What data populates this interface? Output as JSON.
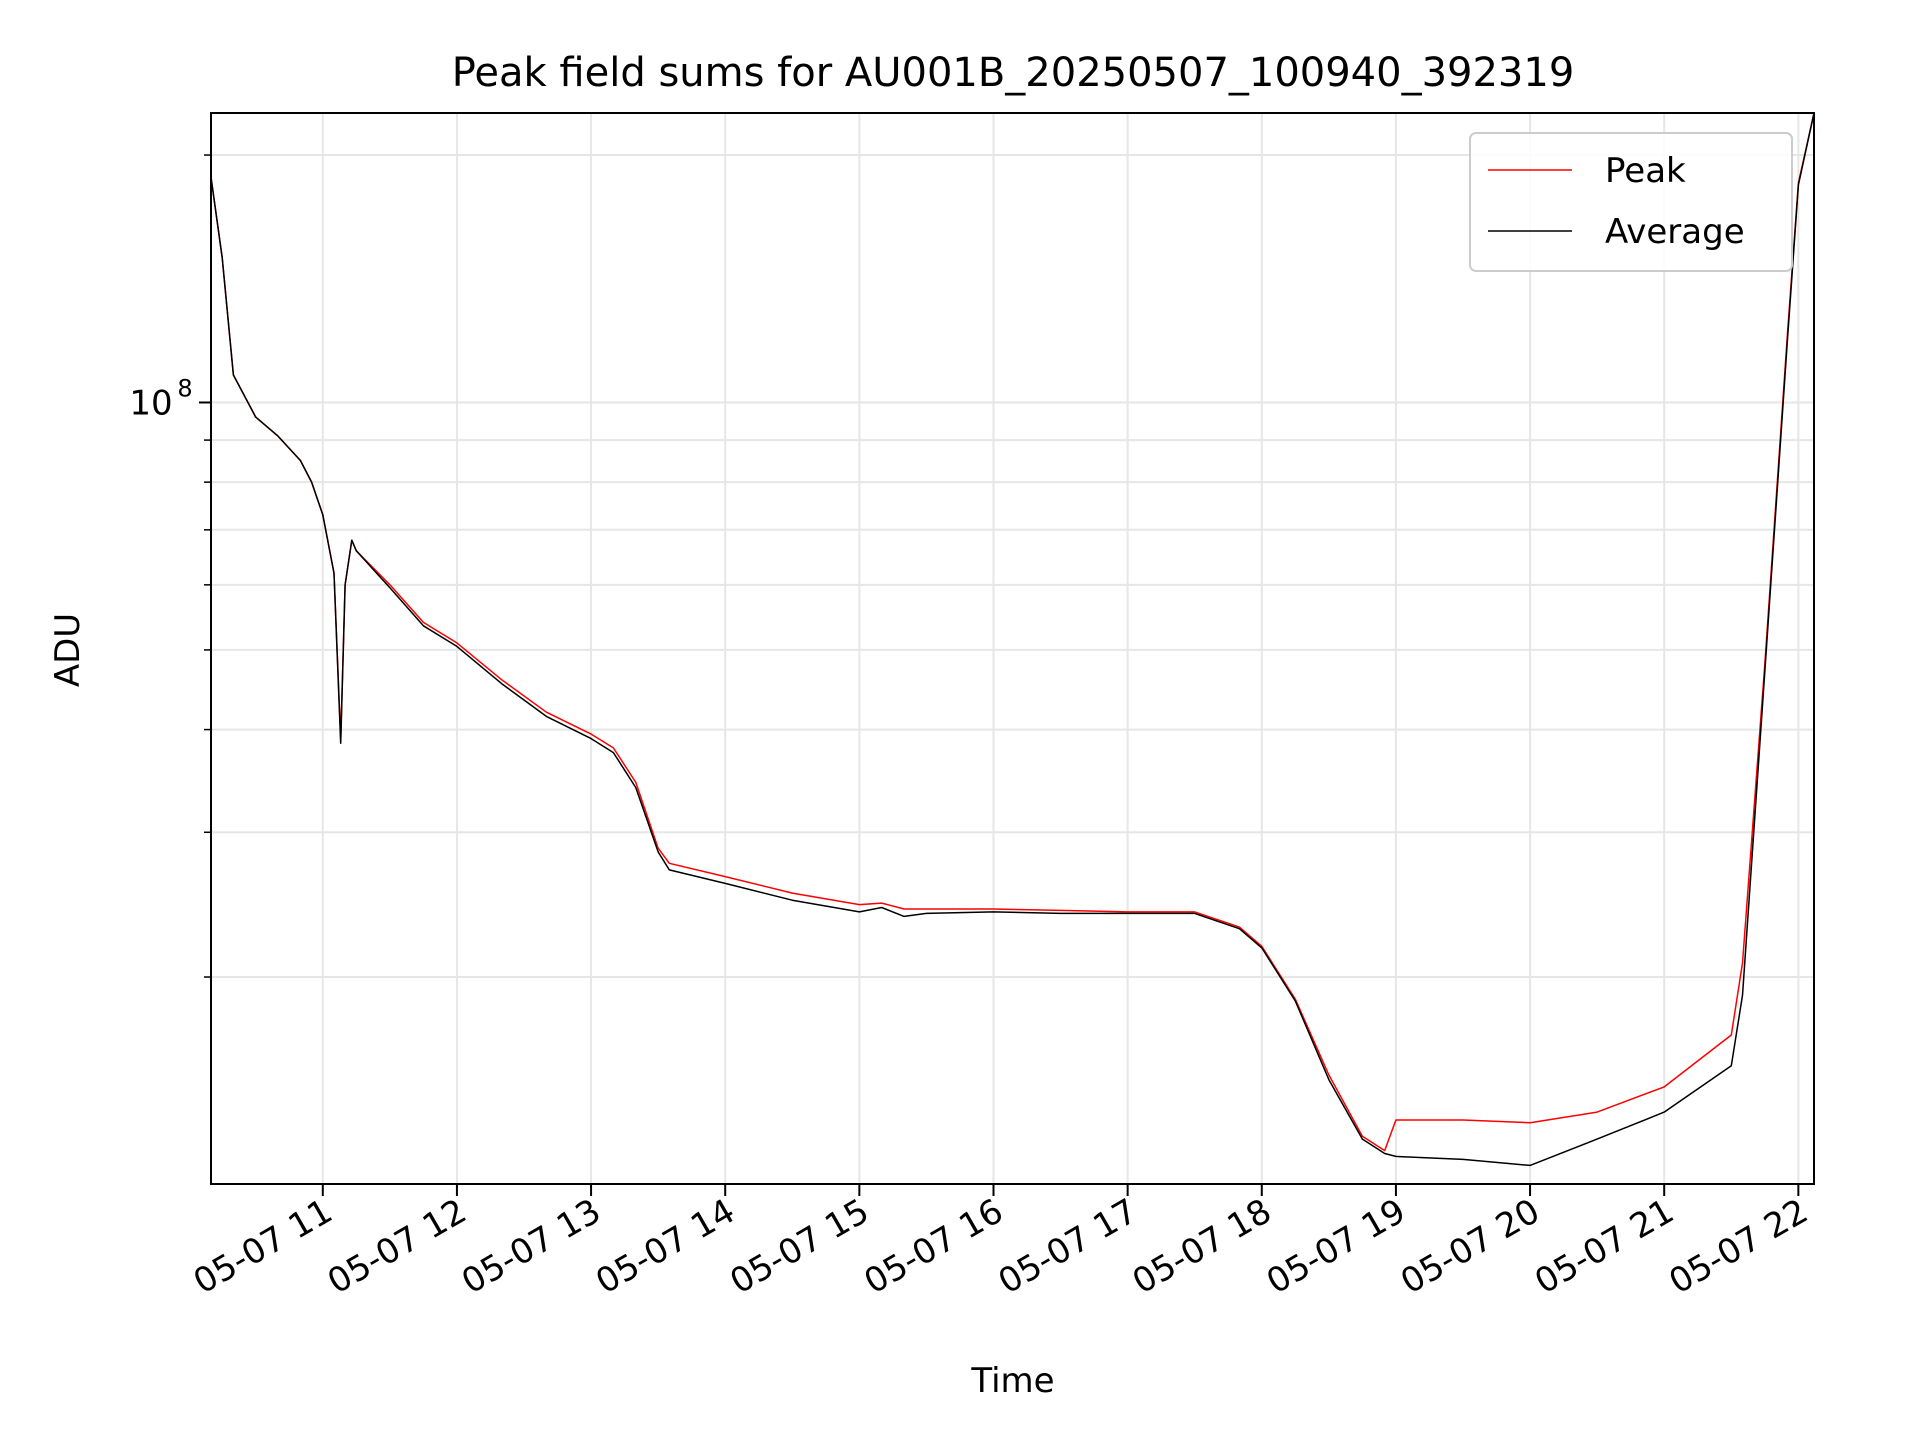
{
  "chart_data": {
    "type": "line",
    "title": "Peak field sums for AU001B_20250507_100940_392319",
    "xlabel": "Time",
    "ylabel": "ADU",
    "yscale": "log",
    "ylim": [
      11200000,
      225000000
    ],
    "xlim": [
      "2025-05-07 10:10",
      "2025-05-07 22:07"
    ],
    "x_tick_labels": [
      "05-07 11",
      "05-07 12",
      "05-07 13",
      "05-07 14",
      "05-07 15",
      "05-07 16",
      "05-07 17",
      "05-07 18",
      "05-07 19",
      "05-07 20",
      "05-07 21",
      "05-07 22"
    ],
    "x_ticks": [
      "2025-05-07 11:00",
      "2025-05-07 12:00",
      "2025-05-07 13:00",
      "2025-05-07 14:00",
      "2025-05-07 15:00",
      "2025-05-07 16:00",
      "2025-05-07 17:00",
      "2025-05-07 18:00",
      "2025-05-07 19:00",
      "2025-05-07 20:00",
      "2025-05-07 21:00",
      "2025-05-07 22:00"
    ],
    "y_tick_label": {
      "base": "10",
      "exponent": "8",
      "value": 100000000
    },
    "y_minor_ticks": [
      20000000,
      30000000,
      40000000,
      50000000,
      60000000,
      70000000,
      80000000,
      90000000,
      200000000
    ],
    "grid": true,
    "legend_position": "top-right",
    "series": [
      {
        "name": "Peak",
        "color": "#ff0000",
        "x": [
          "2025-05-07 10:10",
          "2025-05-07 10:15",
          "2025-05-07 10:20",
          "2025-05-07 10:30",
          "2025-05-07 10:40",
          "2025-05-07 10:50",
          "2025-05-07 10:55",
          "2025-05-07 11:00",
          "2025-05-07 11:05",
          "2025-05-07 11:08",
          "2025-05-07 11:10",
          "2025-05-07 11:13",
          "2025-05-07 11:15",
          "2025-05-07 11:30",
          "2025-05-07 11:45",
          "2025-05-07 12:00",
          "2025-05-07 12:20",
          "2025-05-07 12:40",
          "2025-05-07 13:00",
          "2025-05-07 13:10",
          "2025-05-07 13:20",
          "2025-05-07 13:30",
          "2025-05-07 13:35",
          "2025-05-07 14:00",
          "2025-05-07 14:30",
          "2025-05-07 15:00",
          "2025-05-07 15:10",
          "2025-05-07 15:20",
          "2025-05-07 15:30",
          "2025-05-07 16:00",
          "2025-05-07 16:30",
          "2025-05-07 17:00",
          "2025-05-07 17:30",
          "2025-05-07 17:50",
          "2025-05-07 18:00",
          "2025-05-07 18:15",
          "2025-05-07 18:30",
          "2025-05-07 18:45",
          "2025-05-07 18:55",
          "2025-05-07 19:00",
          "2025-05-07 19:30",
          "2025-05-07 20:00",
          "2025-05-07 20:30",
          "2025-05-07 21:00",
          "2025-05-07 21:30",
          "2025-05-07 21:35",
          "2025-05-07 21:45",
          "2025-05-07 21:55",
          "2025-05-07 22:00",
          "2025-05-07 22:07"
        ],
        "y": [
          188000000,
          150000000,
          108000000,
          96000000,
          91000000,
          85000000,
          80000000,
          73000000,
          62000000,
          39000000,
          60000000,
          68000000,
          66000000,
          60000000,
          54000000,
          51000000,
          46000000,
          42000000,
          39500000,
          38000000,
          34500000,
          28700000,
          27500000,
          26500000,
          25300000,
          24500000,
          24600000,
          24200000,
          24200000,
          24200000,
          24100000,
          24000000,
          24000000,
          23000000,
          21800000,
          18800000,
          15200000,
          12800000,
          12300000,
          13400000,
          13400000,
          13300000,
          13700000,
          14700000,
          17000000,
          20800000,
          48000000,
          120000000,
          185000000,
          225000000
        ]
      },
      {
        "name": "Average",
        "color": "#000000",
        "x": [
          "2025-05-07 10:10",
          "2025-05-07 10:15",
          "2025-05-07 10:20",
          "2025-05-07 10:30",
          "2025-05-07 10:40",
          "2025-05-07 10:50",
          "2025-05-07 10:55",
          "2025-05-07 11:00",
          "2025-05-07 11:05",
          "2025-05-07 11:08",
          "2025-05-07 11:10",
          "2025-05-07 11:13",
          "2025-05-07 11:15",
          "2025-05-07 11:30",
          "2025-05-07 11:45",
          "2025-05-07 12:00",
          "2025-05-07 12:20",
          "2025-05-07 12:40",
          "2025-05-07 13:00",
          "2025-05-07 13:10",
          "2025-05-07 13:20",
          "2025-05-07 13:30",
          "2025-05-07 13:35",
          "2025-05-07 14:00",
          "2025-05-07 14:30",
          "2025-05-07 15:00",
          "2025-05-07 15:10",
          "2025-05-07 15:20",
          "2025-05-07 15:30",
          "2025-05-07 16:00",
          "2025-05-07 16:30",
          "2025-05-07 17:00",
          "2025-05-07 17:30",
          "2025-05-07 17:50",
          "2025-05-07 18:00",
          "2025-05-07 18:15",
          "2025-05-07 18:30",
          "2025-05-07 18:45",
          "2025-05-07 18:55",
          "2025-05-07 19:00",
          "2025-05-07 19:30",
          "2025-05-07 20:00",
          "2025-05-07 20:30",
          "2025-05-07 21:00",
          "2025-05-07 21:30",
          "2025-05-07 21:35",
          "2025-05-07 21:45",
          "2025-05-07 21:55",
          "2025-05-07 22:00",
          "2025-05-07 22:07"
        ],
        "y": [
          188000000,
          150000000,
          108000000,
          96000000,
          91000000,
          85000000,
          80000000,
          73000000,
          62000000,
          38500000,
          60000000,
          68000000,
          66000000,
          59500000,
          53500000,
          50500000,
          45500000,
          41500000,
          39000000,
          37500000,
          34000000,
          28400000,
          27000000,
          26000000,
          24800000,
          24000000,
          24300000,
          23700000,
          23900000,
          24000000,
          23900000,
          23900000,
          23900000,
          22900000,
          21700000,
          18700000,
          15000000,
          12700000,
          12200000,
          12100000,
          12000000,
          11800000,
          12700000,
          13700000,
          15600000,
          19000000,
          47000000,
          118000000,
          184000000,
          225000000
        ]
      }
    ]
  }
}
